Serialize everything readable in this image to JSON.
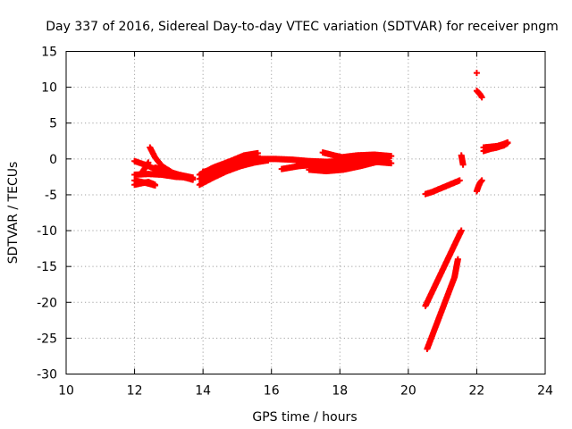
{
  "chart_data": {
    "type": "scatter",
    "title": "Day 337 of 2016, Sidereal Day-to-day VTEC variation (SDTVAR) for receiver pngm",
    "xlabel": "GPS time / hours",
    "ylabel": "SDTVAR / TECUs",
    "xlim": [
      10,
      24
    ],
    "ylim": [
      -30,
      15
    ],
    "xticks": [
      10,
      12,
      14,
      16,
      18,
      20,
      22,
      24
    ],
    "yticks": [
      15,
      10,
      5,
      0,
      -5,
      -10,
      -15,
      -20,
      -25,
      -30
    ],
    "grid": true,
    "marker": "plus",
    "color": "#ff0000",
    "segments": [
      {
        "x": [
          12.0,
          12.3,
          12.6,
          13.0,
          13.4,
          13.7
        ],
        "y": [
          -0.3,
          -0.8,
          -1.4,
          -2.0,
          -2.5,
          -2.9
        ]
      },
      {
        "x": [
          12.0,
          12.4,
          12.8,
          13.2,
          13.7
        ],
        "y": [
          -2.2,
          -2.1,
          -2.2,
          -2.5,
          -2.6
        ]
      },
      {
        "x": [
          12.0,
          12.3,
          12.6
        ],
        "y": [
          -3.0,
          -3.3,
          -3.7
        ]
      },
      {
        "x": [
          12.0,
          12.2,
          12.4,
          12.6
        ],
        "y": [
          -3.6,
          -3.4,
          -3.2,
          -3.6
        ]
      },
      {
        "x": [
          12.2,
          12.3,
          12.4
        ],
        "y": [
          -2.0,
          -1.3,
          -0.5
        ]
      },
      {
        "x": [
          12.45,
          12.6,
          12.8,
          13.1,
          13.4,
          13.7
        ],
        "y": [
          1.6,
          0.2,
          -1.0,
          -1.9,
          -2.4,
          -2.8
        ]
      },
      {
        "x": [
          12.6,
          12.9,
          13.3,
          13.7
        ],
        "y": [
          -1.2,
          -1.7,
          -2.2,
          -2.6
        ]
      },
      {
        "x": [
          13.9,
          14.3,
          14.7,
          15.1,
          15.5,
          15.9
        ],
        "y": [
          -3.6,
          -2.6,
          -1.7,
          -1.0,
          -0.5,
          -0.2
        ]
      },
      {
        "x": [
          13.9,
          14.3,
          14.7,
          15.1,
          15.5,
          15.9
        ],
        "y": [
          -2.8,
          -2.0,
          -1.3,
          -0.7,
          -0.3,
          -0.1
        ]
      },
      {
        "x": [
          13.9,
          14.3,
          14.8,
          15.2,
          15.6
        ],
        "y": [
          -2.2,
          -1.2,
          -0.3,
          0.5,
          0.8
        ]
      },
      {
        "x": [
          14.0,
          14.4,
          14.8,
          15.2,
          15.6
        ],
        "y": [
          -1.8,
          -1.4,
          -0.8,
          -0.2,
          0.4
        ]
      },
      {
        "x": [
          15.6,
          16.1,
          16.6,
          17.1,
          17.6,
          18.1,
          18.6,
          19.0,
          19.4
        ],
        "y": [
          0.0,
          0.0,
          -0.1,
          -0.3,
          -0.4,
          -0.3,
          -0.2,
          0.1,
          0.2
        ]
      },
      {
        "x": [
          16.3,
          16.8,
          17.3,
          17.8,
          18.3,
          18.8,
          19.3
        ],
        "y": [
          -1.4,
          -1.0,
          -0.8,
          -0.6,
          -0.3,
          0.0,
          0.4
        ]
      },
      {
        "x": [
          16.8,
          17.3,
          17.8,
          18.3,
          18.8,
          19.3
        ],
        "y": [
          -0.6,
          -1.0,
          -1.3,
          -1.0,
          -0.6,
          -0.1
        ]
      },
      {
        "x": [
          17.1,
          17.6,
          18.1,
          18.6,
          19.1,
          19.4
        ],
        "y": [
          -1.5,
          -1.7,
          -1.5,
          -1.0,
          -0.4,
          0.0
        ]
      },
      {
        "x": [
          17.5,
          18.0,
          18.5,
          19.0,
          19.5
        ],
        "y": [
          0.9,
          0.3,
          -0.2,
          -0.4,
          -0.6
        ]
      },
      {
        "x": [
          18.0,
          18.5,
          19.0,
          19.5
        ],
        "y": [
          0.2,
          0.5,
          0.6,
          0.4
        ]
      },
      {
        "x": [
          20.5,
          20.7,
          20.9,
          21.1,
          21.3,
          21.5
        ],
        "y": [
          -4.9,
          -4.6,
          -4.2,
          -3.8,
          -3.4,
          -3.0
        ]
      },
      {
        "x": [
          20.5,
          20.7,
          20.9,
          21.1,
          21.3,
          21.55
        ],
        "y": [
          -20.5,
          -18.5,
          -16.5,
          -14.5,
          -12.5,
          -10.0
        ]
      },
      {
        "x": [
          20.55,
          20.75,
          20.95,
          21.15,
          21.35,
          21.45
        ],
        "y": [
          -26.5,
          -24.0,
          -21.5,
          -19.0,
          -16.5,
          -14.0
        ]
      },
      {
        "x": [
          21.55,
          21.6
        ],
        "y": [
          0.5,
          -0.8
        ]
      },
      {
        "x": [
          22.0
        ],
        "y": [
          12.0
        ]
      },
      {
        "x": [
          22.0,
          22.1,
          22.15
        ],
        "y": [
          9.5,
          9.0,
          8.6
        ]
      },
      {
        "x": [
          22.0,
          22.05,
          22.1,
          22.15
        ],
        "y": [
          -4.5,
          -3.8,
          -3.3,
          -3.0
        ]
      },
      {
        "x": [
          22.2,
          22.4,
          22.6,
          22.8,
          22.9
        ],
        "y": [
          1.1,
          1.4,
          1.6,
          1.9,
          2.2
        ]
      },
      {
        "x": [
          22.2,
          22.4,
          22.6,
          22.8,
          22.9
        ],
        "y": [
          1.6,
          1.7,
          1.8,
          2.1,
          2.3
        ]
      }
    ]
  }
}
